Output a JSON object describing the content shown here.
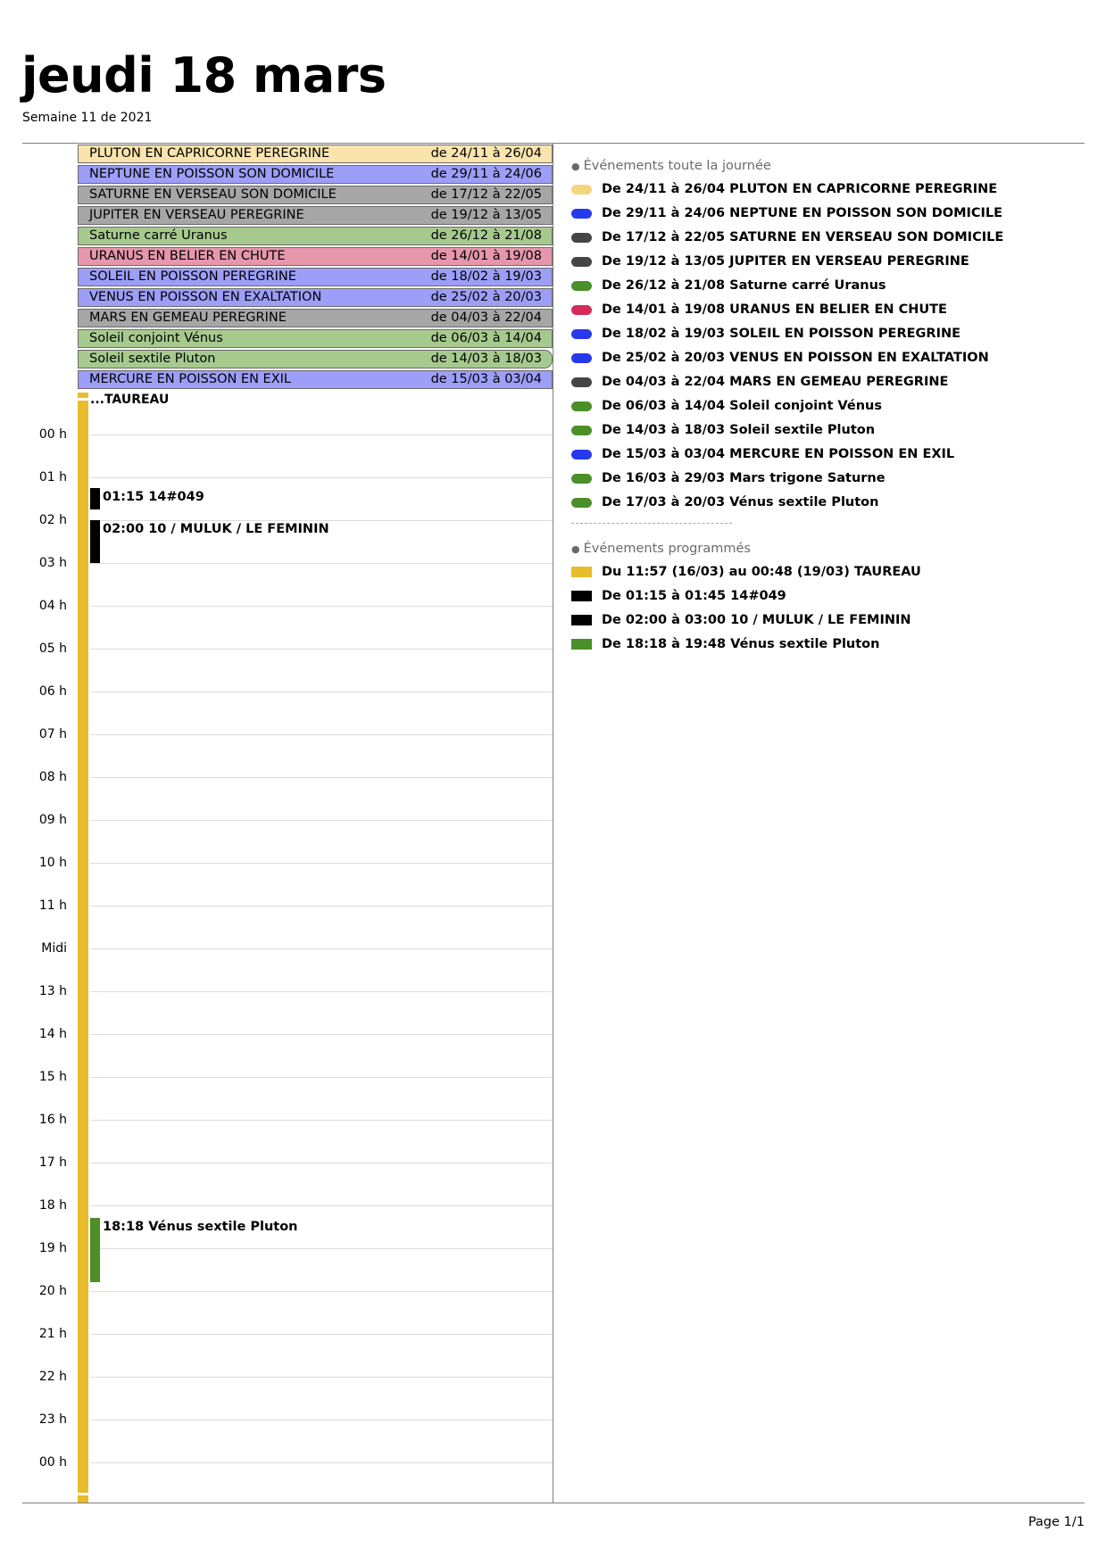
{
  "header": {
    "title": "jeudi 18 mars",
    "subtitle": "Semaine 11 de 2021"
  },
  "colors": {
    "yellow_light": "#f9e4ad",
    "blue": "#9c9ef8",
    "gray": "#a6a6a6",
    "green_light": "#a6ca8e",
    "pink": "#e697ac",
    "gold": "#e8bc2c",
    "legend_yellow": "#f5d57e",
    "legend_blue": "#2739ec",
    "legend_gray": "#454545",
    "legend_green": "#4b8f28",
    "legend_pink": "#d72a5c",
    "black": "#000000"
  },
  "all_day": [
    {
      "label": "PLUTON EN CAPRICORNE PEREGRINE",
      "range": "de 24/11 à 26/04",
      "color": "#f9e4ad"
    },
    {
      "label": "NEPTUNE EN POISSON SON DOMICILE",
      "range": "de 29/11 à 24/06",
      "color": "#9c9ef8"
    },
    {
      "label": "SATURNE EN VERSEAU SON DOMICILE",
      "range": "de 17/12 à 22/05",
      "color": "#a6a6a6"
    },
    {
      "label": "JUPITER EN VERSEAU PEREGRINE",
      "range": "de 19/12 à 13/05",
      "color": "#a6a6a6"
    },
    {
      "label": "Saturne carré Uranus",
      "range": "de 26/12 à 21/08",
      "color": "#a6ca8e"
    },
    {
      "label": "URANUS EN BELIER EN CHUTE",
      "range": "de 14/01 à 19/08",
      "color": "#e697ac"
    },
    {
      "label": "SOLEIL EN POISSON PEREGRINE",
      "range": "de 18/02 à 19/03",
      "color": "#9c9ef8"
    },
    {
      "label": "VENUS EN POISSON EN EXALTATION",
      "range": "de 25/02 à 20/03",
      "color": "#9c9ef8"
    },
    {
      "label": "MARS EN GEMEAU PEREGRINE",
      "range": "de 04/03 à 22/04",
      "color": "#a6a6a6"
    },
    {
      "label": "Soleil conjoint Vénus",
      "range": "de 06/03 à 14/04",
      "color": "#a6ca8e"
    },
    {
      "label": "Soleil sextile Pluton",
      "range": "de 14/03 à 18/03",
      "color": "#a6ca8e",
      "rounded": true
    },
    {
      "label": "MERCURE EN POISSON EN EXIL",
      "range": "de 15/03 à 03/04",
      "color": "#9c9ef8"
    }
  ],
  "hours": [
    "00 h",
    "01 h",
    "02 h",
    "03 h",
    "04 h",
    "05 h",
    "06 h",
    "07 h",
    "08 h",
    "09 h",
    "10 h",
    "11 h",
    "Midi",
    "13 h",
    "14 h",
    "15 h",
    "16 h",
    "17 h",
    "18 h",
    "19 h",
    "20 h",
    "21 h",
    "22 h",
    "23 h",
    "00 h"
  ],
  "multi_day_label": "...TAUREAU",
  "timed_events": [
    {
      "text": "01:15 14#049",
      "start_hour": 1.25,
      "end_hour": 1.75,
      "color": "#000000"
    },
    {
      "text": "02:00 10 / MULUK / LE FEMININ",
      "start_hour": 2.0,
      "end_hour": 3.0,
      "color": "#000000"
    },
    {
      "text": "18:18 Vénus sextile Pluton",
      "start_hour": 18.3,
      "end_hour": 19.8,
      "color": "#4b8f28"
    }
  ],
  "legend_allday": {
    "heading": "Événements toute la journée",
    "items": [
      {
        "text": "De 24/11 à 26/04 PLUTON EN CAPRICORNE PEREGRINE",
        "color": "#f5d57e"
      },
      {
        "text": "De 29/11 à 24/06 NEPTUNE EN POISSON SON DOMICILE",
        "color": "#2739ec"
      },
      {
        "text": "De 17/12 à 22/05 SATURNE EN VERSEAU SON DOMICILE",
        "color": "#454545"
      },
      {
        "text": "De 19/12 à 13/05 JUPITER EN VERSEAU PEREGRINE",
        "color": "#454545"
      },
      {
        "text": "De 26/12 à 21/08 Saturne carré Uranus",
        "color": "#4b8f28"
      },
      {
        "text": "De 14/01 à 19/08 URANUS EN BELIER EN CHUTE",
        "color": "#d72a5c"
      },
      {
        "text": "De 18/02 à 19/03 SOLEIL EN POISSON PEREGRINE",
        "color": "#2739ec"
      },
      {
        "text": "De 25/02 à 20/03 VENUS EN POISSON EN EXALTATION",
        "color": "#2739ec"
      },
      {
        "text": "De 04/03 à 22/04 MARS EN GEMEAU PEREGRINE",
        "color": "#454545"
      },
      {
        "text": "De 06/03 à 14/04 Soleil conjoint Vénus",
        "color": "#4b8f28"
      },
      {
        "text": "De 14/03 à 18/03 Soleil sextile Pluton",
        "color": "#4b8f28"
      },
      {
        "text": "De 15/03 à 03/04 MERCURE EN POISSON EN EXIL",
        "color": "#2739ec"
      },
      {
        "text": "De 16/03 à 29/03 Mars trigone Saturne",
        "color": "#4b8f28"
      },
      {
        "text": "De 17/03 à 20/03 Vénus sextile Pluton",
        "color": "#4b8f28"
      }
    ]
  },
  "legend_timed": {
    "heading": "Événements programmés",
    "items": [
      {
        "text": "Du 11:57 (16/03) au 00:48 (19/03) TAUREAU",
        "color": "#e8bc2c"
      },
      {
        "text": "De 01:15 à 01:45 14#049",
        "color": "#000000"
      },
      {
        "text": "De 02:00 à 03:00 10 / MULUK / LE FEMININ",
        "color": "#000000"
      },
      {
        "text": "De 18:18 à 19:48 Vénus sextile Pluton",
        "color": "#4b8f28"
      }
    ]
  },
  "footer": {
    "page": "Page 1/1"
  }
}
